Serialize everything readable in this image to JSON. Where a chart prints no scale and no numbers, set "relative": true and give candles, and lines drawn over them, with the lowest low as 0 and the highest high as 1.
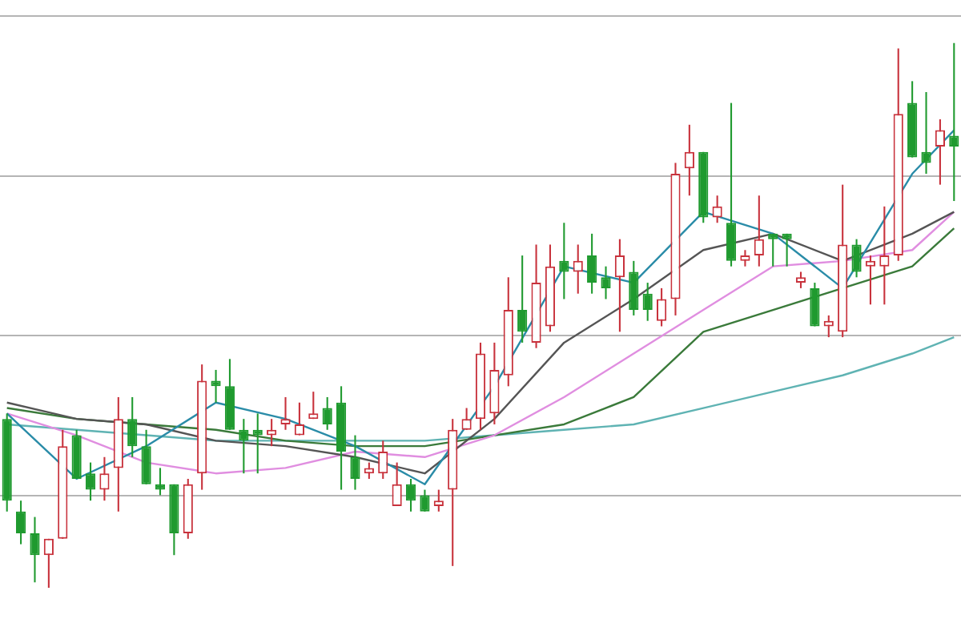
{
  "chart_data": {
    "type": "candlestick",
    "relative": true,
    "grid": "y",
    "legend": false,
    "marker": "none",
    "categories": [
      null,
      null,
      null,
      null,
      null,
      null,
      null,
      null,
      null,
      null,
      null,
      null,
      null,
      null,
      null,
      null,
      null,
      null,
      null,
      null,
      null,
      null,
      null,
      null,
      null,
      null,
      null,
      null,
      null,
      null,
      null,
      null,
      null,
      null,
      null,
      null,
      null,
      null,
      null,
      null,
      null,
      null,
      null,
      null,
      null,
      null,
      null,
      null,
      null,
      null,
      null,
      null,
      null,
      null,
      null,
      null,
      null,
      null,
      null,
      null,
      null,
      null,
      null,
      null,
      null,
      null,
      null,
      null,
      null
    ],
    "ohlc": [
      [
        0.31,
        0.32,
        0.14,
        0.16
      ],
      [
        0.14,
        0.16,
        0.08,
        0.1
      ],
      [
        0.1,
        0.13,
        0.01,
        0.06
      ],
      [
        0.06,
        0.09,
        0,
        0.09
      ],
      [
        0.09,
        0.29,
        0.09,
        0.26
      ],
      [
        0.28,
        0.29,
        0.2,
        0.2
      ],
      [
        0.21,
        0.23,
        0.16,
        0.18
      ],
      [
        0.18,
        0.24,
        0.16,
        0.21
      ],
      [
        0.22,
        0.35,
        0.14,
        0.31
      ],
      [
        0.31,
        0.35,
        0.24,
        0.26
      ],
      [
        0.26,
        0.29,
        0.19,
        0.19
      ],
      [
        0.19,
        0.22,
        0.17,
        0.18
      ],
      [
        0.19,
        0.19,
        0.06,
        0.1
      ],
      [
        0.1,
        0.2,
        0.09,
        0.19
      ],
      [
        0.21,
        0.41,
        0.18,
        0.38
      ],
      [
        0.38,
        0.4,
        0.34,
        0.37
      ],
      [
        0.37,
        0.42,
        0.29,
        0.29
      ],
      [
        0.29,
        0.31,
        0.21,
        0.27
      ],
      [
        0.29,
        0.32,
        0.21,
        0.28
      ],
      [
        0.28,
        0.31,
        0.26,
        0.29
      ],
      [
        0.3,
        0.35,
        0.29,
        0.31
      ],
      [
        0.28,
        0.34,
        0.28,
        0.3
      ],
      [
        0.31,
        0.36,
        0.31,
        0.32
      ],
      [
        0.33,
        0.35,
        0.29,
        0.3
      ],
      [
        0.34,
        0.37,
        0.18,
        0.25
      ],
      [
        0.24,
        0.28,
        0.18,
        0.2
      ],
      [
        0.21,
        0.23,
        0.2,
        0.22
      ],
      [
        0.21,
        0.27,
        0.2,
        0.25
      ],
      [
        0.15,
        0.23,
        0.15,
        0.19
      ],
      [
        0.19,
        0.2,
        0.14,
        0.16
      ],
      [
        0.17,
        0.18,
        0.14,
        0.14
      ],
      [
        0.15,
        0.18,
        0.14,
        0.16
      ],
      [
        0.18,
        0.31,
        0.04,
        0.29
      ],
      [
        0.29,
        0.33,
        0.29,
        0.31
      ],
      [
        0.31,
        0.45,
        0.29,
        0.43
      ],
      [
        0.32,
        0.45,
        0.3,
        0.4
      ],
      [
        0.39,
        0.57,
        0.37,
        0.51
      ],
      [
        0.51,
        0.61,
        0.45,
        0.47
      ],
      [
        0.45,
        0.63,
        0.44,
        0.56
      ],
      [
        0.48,
        0.63,
        0.47,
        0.59
      ],
      [
        0.6,
        0.67,
        0.53,
        0.58
      ],
      [
        0.58,
        0.63,
        0.54,
        0.6
      ],
      [
        0.61,
        0.65,
        0.54,
        0.56
      ],
      [
        0.57,
        0.59,
        0.53,
        0.55
      ],
      [
        0.57,
        0.64,
        0.47,
        0.61
      ],
      [
        0.58,
        0.6,
        0.5,
        0.51
      ],
      [
        0.54,
        0.56,
        0.49,
        0.51
      ],
      [
        0.49,
        0.55,
        0.48,
        0.53
      ],
      [
        0.53,
        0.78,
        0.5,
        0.76
      ],
      [
        0.77,
        0.85,
        0.72,
        0.8
      ],
      [
        0.8,
        0.8,
        0.67,
        0.68
      ],
      [
        0.68,
        0.72,
        0.67,
        0.7
      ],
      [
        0.67,
        0.89,
        0.59,
        0.6
      ],
      [
        0.6,
        0.62,
        0.59,
        0.61
      ],
      [
        0.61,
        0.72,
        0.59,
        0.64
      ],
      [
        0.65,
        0.65,
        0.59,
        0.64
      ],
      [
        0.65,
        0.65,
        0.59,
        0.64
      ],
      [
        0.56,
        0.58,
        0.55,
        0.57
      ],
      [
        0.55,
        0.56,
        0.48,
        0.48
      ],
      [
        0.48,
        0.5,
        0.46,
        0.49
      ],
      [
        0.47,
        0.74,
        0.46,
        0.63
      ],
      [
        0.63,
        0.64,
        0.57,
        0.58
      ],
      [
        0.59,
        0.61,
        0.52,
        0.6
      ],
      [
        0.59,
        0.7,
        0.52,
        0.61
      ],
      [
        0.61,
        0.99,
        0.6,
        0.87
      ],
      [
        0.89,
        0.93,
        0.79,
        0.79
      ],
      [
        0.8,
        0.91,
        0.76,
        0.78
      ],
      [
        0.81,
        0.86,
        0.74,
        0.84
      ],
      [
        0.83,
        1,
        0.71,
        0.81
      ]
    ],
    "colors": [
      "#1f9a2f",
      "#1f9a2f",
      "#1f9a2f",
      "#c8323c",
      "#c8323c",
      "#1f9a2f",
      "#1f9a2f",
      "#c8323c",
      "#c8323c",
      "#1f9a2f",
      "#1f9a2f",
      "#1f9a2f",
      "#1f9a2f",
      "#c8323c",
      "#c8323c",
      "#1f9a2f",
      "#1f9a2f",
      "#1f9a2f",
      "#1f9a2f",
      "#c8323c",
      "#c8323c",
      "#c8323c",
      "#c8323c",
      "#1f9a2f",
      "#1f9a2f",
      "#1f9a2f",
      "#c8323c",
      "#c8323c",
      "#c8323c",
      "#1f9a2f",
      "#1f9a2f",
      "#c8323c",
      "#c8323c",
      "#c8323c",
      "#c8323c",
      "#c8323c",
      "#c8323c",
      "#1f9a2f",
      "#c8323c",
      "#c8323c",
      "#1f9a2f",
      "#c8323c",
      "#1f9a2f",
      "#1f9a2f",
      "#c8323c",
      "#1f9a2f",
      "#1f9a2f",
      "#c8323c",
      "#c8323c",
      "#c8323c",
      "#1f9a2f",
      "#c8323c",
      "#1f9a2f",
      "#c8323c",
      "#c8323c",
      "#1f9a2f",
      "#1f9a2f",
      "#c8323c",
      "#1f9a2f",
      "#c8323c",
      "#c8323c",
      "#1f9a2f",
      "#c8323c",
      "#c8323c",
      "#c8323c",
      "#1f9a2f",
      "#1f9a2f",
      "#c8323c",
      "#1f9a2f"
    ],
    "series": [
      {
        "type": "line",
        "color": "#2a8ca8",
        "values": [
          0.32,
          null,
          null,
          null,
          null,
          0.2,
          null,
          null,
          null,
          null,
          0.26,
          null,
          null,
          null,
          null,
          0.34,
          null,
          null,
          null,
          null,
          0.31,
          null,
          null,
          null,
          null,
          0.26,
          null,
          null,
          null,
          null,
          0.19,
          null,
          null,
          null,
          null,
          0.37,
          null,
          null,
          null,
          null,
          0.59,
          null,
          null,
          null,
          null,
          0.56,
          null,
          null,
          null,
          null,
          0.69,
          null,
          null,
          null,
          null,
          0.65,
          null,
          null,
          null,
          null,
          0.55,
          null,
          null,
          null,
          null,
          0.76,
          null,
          null,
          0.84
        ]
      },
      {
        "type": "line",
        "color": "#555555",
        "values": [
          0.34,
          null,
          null,
          null,
          null,
          0.31,
          null,
          null,
          null,
          null,
          0.3,
          null,
          null,
          null,
          null,
          0.27,
          null,
          null,
          null,
          null,
          0.26,
          null,
          null,
          null,
          null,
          0.24,
          null,
          null,
          null,
          null,
          0.21,
          null,
          null,
          null,
          null,
          0.31,
          null,
          null,
          null,
          null,
          0.45,
          null,
          null,
          null,
          null,
          0.53,
          null,
          null,
          null,
          null,
          0.62,
          null,
          null,
          null,
          null,
          0.65,
          null,
          null,
          null,
          null,
          0.6,
          null,
          null,
          null,
          null,
          0.65,
          null,
          null,
          0.69
        ]
      },
      {
        "type": "line",
        "color": "#e08ee0",
        "values": [
          0.32,
          null,
          null,
          null,
          null,
          0.28,
          null,
          null,
          null,
          null,
          0.23,
          null,
          null,
          null,
          null,
          0.21,
          null,
          null,
          null,
          null,
          0.22,
          null,
          null,
          null,
          null,
          0.25,
          null,
          null,
          null,
          null,
          0.24,
          null,
          null,
          null,
          null,
          0.28,
          null,
          null,
          null,
          null,
          0.35,
          null,
          null,
          null,
          null,
          0.43,
          null,
          null,
          null,
          null,
          0.51,
          null,
          null,
          null,
          null,
          0.59,
          null,
          null,
          null,
          null,
          0.6,
          null,
          null,
          null,
          null,
          0.62,
          null,
          null,
          0.69
        ]
      },
      {
        "type": "line",
        "color": "#3a7a3a",
        "values": [
          0.33,
          null,
          null,
          null,
          null,
          0.31,
          null,
          null,
          null,
          null,
          0.3,
          null,
          null,
          null,
          null,
          0.29,
          null,
          null,
          null,
          null,
          0.27,
          null,
          null,
          null,
          null,
          0.26,
          null,
          null,
          null,
          null,
          0.26,
          null,
          null,
          null,
          null,
          0.28,
          null,
          null,
          null,
          null,
          0.3,
          null,
          null,
          null,
          null,
          0.35,
          null,
          null,
          null,
          null,
          0.47,
          null,
          null,
          null,
          null,
          0.51,
          null,
          null,
          null,
          null,
          0.55,
          null,
          null,
          null,
          null,
          0.59,
          null,
          null,
          0.66
        ]
      },
      {
        "type": "line",
        "color": "#5fb3b3",
        "values": [
          0.3,
          null,
          null,
          null,
          null,
          0.29,
          null,
          null,
          null,
          null,
          0.28,
          null,
          null,
          null,
          null,
          0.27,
          null,
          null,
          null,
          null,
          0.27,
          null,
          null,
          null,
          null,
          0.27,
          null,
          null,
          null,
          null,
          0.27,
          null,
          null,
          null,
          null,
          0.28,
          null,
          null,
          null,
          null,
          0.29,
          null,
          null,
          null,
          null,
          0.3,
          null,
          null,
          null,
          null,
          0.33,
          null,
          null,
          null,
          null,
          0.36,
          null,
          null,
          null,
          null,
          0.39,
          null,
          null,
          null,
          null,
          0.43,
          null,
          null,
          0.46
        ]
      }
    ]
  }
}
